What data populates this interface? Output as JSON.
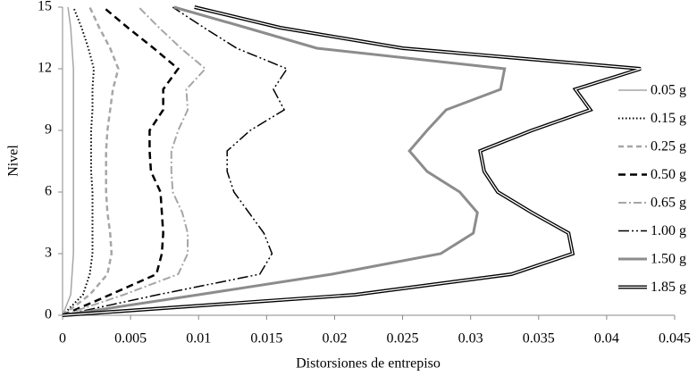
{
  "chart_data": {
    "type": "line",
    "x_label": "Distorsiones de entrepiso",
    "y_label": "Nivel",
    "y": [
      0,
      1,
      2,
      3,
      4,
      5,
      6,
      7,
      8,
      9,
      10,
      11,
      12,
      13,
      14,
      15
    ],
    "xlim": [
      0,
      0.045
    ],
    "xticks": [
      0,
      0.005,
      0.01,
      0.015,
      0.02,
      0.025,
      0.03,
      0.035,
      0.04,
      0.045
    ],
    "ylim": [
      0,
      15
    ],
    "yticks": [
      0,
      3,
      6,
      9,
      12,
      15
    ],
    "grid": false,
    "legend": "right",
    "series": [
      {
        "name": "0.05 g",
        "color": "#a6a6a6",
        "width": 1.5,
        "dash": "none",
        "values": [
          0,
          0.0006,
          0.0007,
          0.0008,
          0.0008,
          0.0008,
          0.0008,
          0.0008,
          0.0008,
          0.0008,
          0.0008,
          0.0008,
          0.0008,
          0.0007,
          0.0006,
          0.0004
        ]
      },
      {
        "name": "0.15 g",
        "color": "#000000",
        "width": 2,
        "dash": "1.5,2.5",
        "values": [
          0,
          0.0015,
          0.002,
          0.0022,
          0.0022,
          0.0022,
          0.0022,
          0.0021,
          0.0021,
          0.0021,
          0.0022,
          0.0022,
          0.0023,
          0.0019,
          0.0014,
          0.0008
        ]
      },
      {
        "name": "0.25 g",
        "color": "#a6a6a6",
        "width": 2.5,
        "dash": "6,4",
        "values": [
          0,
          0.002,
          0.0033,
          0.0036,
          0.0035,
          0.0033,
          0.0032,
          0.0032,
          0.0032,
          0.0033,
          0.0035,
          0.0037,
          0.0041,
          0.0035,
          0.0027,
          0.002
        ]
      },
      {
        "name": "0.50 g",
        "color": "#000000",
        "width": 2.5,
        "dash": "8,5",
        "values": [
          0,
          0.0035,
          0.0069,
          0.0073,
          0.0074,
          0.0073,
          0.0072,
          0.0065,
          0.0064,
          0.0064,
          0.0074,
          0.0074,
          0.0085,
          0.0067,
          0.0048,
          0.003
        ]
      },
      {
        "name": "0.65 g",
        "color": "#a6a6a6",
        "width": 2,
        "dash": "9,3,2,3",
        "values": [
          0,
          0.0045,
          0.0085,
          0.0092,
          0.0092,
          0.0088,
          0.0081,
          0.008,
          0.008,
          0.0085,
          0.0092,
          0.0091,
          0.0105,
          0.0087,
          0.0071,
          0.0056
        ]
      },
      {
        "name": "1.00 g",
        "color": "#000000",
        "width": 1.5,
        "dash": "12,3,2,3,2,3",
        "values": [
          0,
          0.007,
          0.0145,
          0.0154,
          0.0148,
          0.0137,
          0.0126,
          0.0121,
          0.0121,
          0.0138,
          0.0163,
          0.0155,
          0.0165,
          0.0128,
          0.0104,
          0.0081
        ]
      },
      {
        "name": "1.50 g",
        "color": "#8c8c8c",
        "width": 3,
        "dash": "none",
        "values": [
          0,
          0.01,
          0.0198,
          0.0278,
          0.0302,
          0.0305,
          0.0292,
          0.0268,
          0.0255,
          0.0268,
          0.0282,
          0.0322,
          0.0325,
          0.0187,
          0.0135,
          0.0082
        ]
      },
      {
        "name": "1.85 g",
        "color": "#000000",
        "width": 4,
        "dash": "none",
        "double": true,
        "values": [
          0,
          0.0215,
          0.033,
          0.0375,
          0.0372,
          0.0345,
          0.032,
          0.031,
          0.0307,
          0.0345,
          0.0388,
          0.0377,
          0.0425,
          0.025,
          0.016,
          0.0097
        ]
      }
    ]
  }
}
